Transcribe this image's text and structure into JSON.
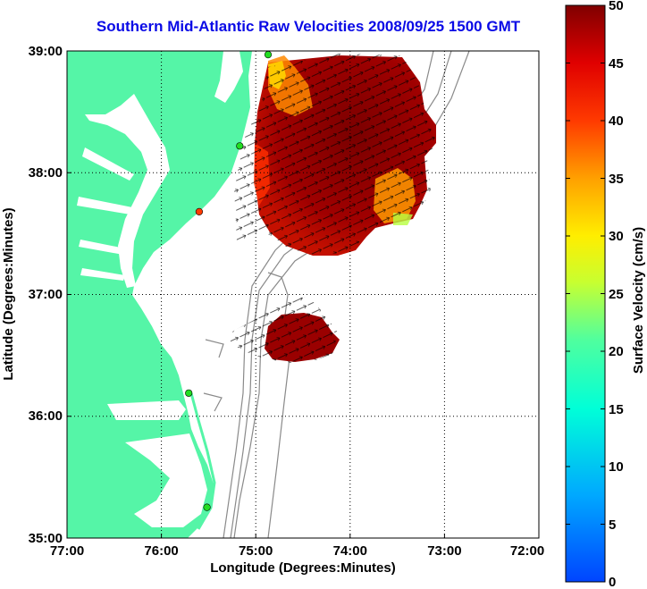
{
  "title": "Southern Mid-Atlantic Raw Velocities 2008/09/25 1500 GMT",
  "xlabel": "Longitude (Degrees:Minutes)",
  "ylabel": "Latitude (Degrees:Minutes)",
  "colorbar_label": "Surface Velocity (cm/s)",
  "x_ticks": [
    "77:00",
    "76:00",
    "75:00",
    "74:00",
    "73:00",
    "72:00"
  ],
  "y_ticks": [
    "39:00",
    "38:00",
    "37:00",
    "36:00",
    "35:00"
  ],
  "colorbar_ticks": [
    "0",
    "5",
    "10",
    "15",
    "20",
    "25",
    "30",
    "35",
    "40",
    "45",
    "50"
  ],
  "colors": {
    "land": "#55f5a7",
    "water": "#ffffff",
    "title": "#0a0ae6",
    "bathymetry": "#8a8a8a",
    "station": "#22dd22"
  },
  "chart_data": {
    "type": "heatmap",
    "title": "Southern Mid-Atlantic Raw Velocities 2008/09/25 1500 GMT",
    "xlabel": "Longitude (Degrees:Minutes)",
    "ylabel": "Latitude (Degrees:Minutes)",
    "xlim": [
      -77,
      -72
    ],
    "ylim": [
      35,
      39
    ],
    "colorbar": {
      "label": "Surface Velocity (cm/s)",
      "range": [
        0,
        50
      ],
      "colormap": "jet"
    },
    "grid": true,
    "stations": [
      {
        "lon": -74.87,
        "lat": 38.97
      },
      {
        "lon": -75.17,
        "lat": 38.22
      },
      {
        "lon": -75.6,
        "lat": 37.68
      },
      {
        "lon": -75.71,
        "lat": 36.19
      },
      {
        "lon": -75.47,
        "lat": 35.26
      }
    ],
    "velocity_regions": [
      {
        "name": "north",
        "lon_range": [
          -75.1,
          -73.1
        ],
        "lat_range": [
          37.45,
          39.0
        ],
        "typical_speed": 48
      },
      {
        "name": "south",
        "lon_range": [
          -74.8,
          -74.2
        ],
        "lat_range": [
          36.55,
          37.0
        ],
        "typical_speed": 48
      }
    ]
  }
}
